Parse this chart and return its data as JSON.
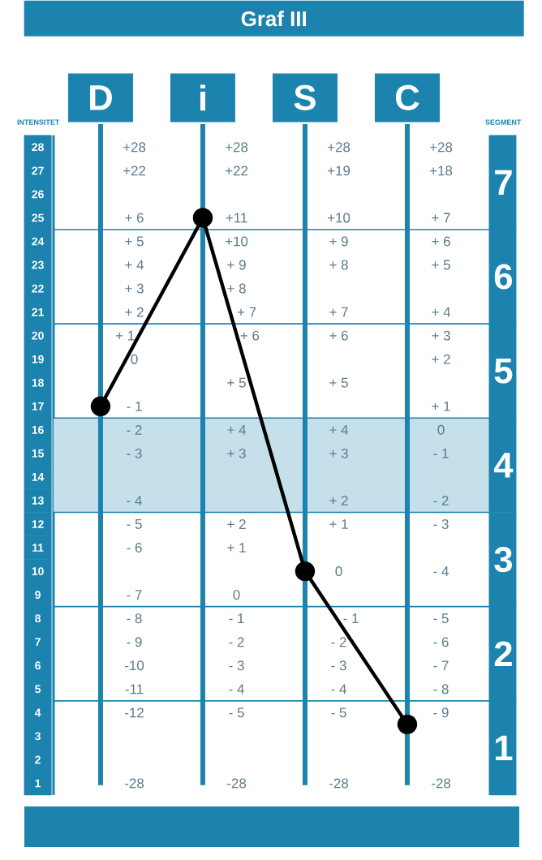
{
  "chart_data": {
    "type": "line",
    "title": "Graf III",
    "ylabel": "INTENSITET",
    "y2label": "SEGMENT",
    "categories": [
      "D",
      "i",
      "S",
      "C"
    ],
    "series": [
      {
        "color": "#000000",
        "values": [
          17,
          25,
          10,
          3.5
        ]
      }
    ],
    "ylim": [
      0.5,
      28.5
    ],
    "yticks": [
      1,
      2,
      3,
      4,
      5,
      6,
      7,
      8,
      9,
      10,
      11,
      12,
      13,
      14,
      15,
      16,
      17,
      18,
      19,
      20,
      21,
      22,
      23,
      24,
      25,
      26,
      27,
      28
    ],
    "y2lim": [
      0.5,
      7.5
    ],
    "y2ticks": [
      1,
      2,
      3,
      4,
      5,
      6,
      7
    ],
    "grid": "x",
    "marker": "circle",
    "line_style": "solid",
    "bands": [
      {
        "axis": "y",
        "from": 12.5,
        "to": 16.5,
        "color": "#c5dfeb"
      }
    ],
    "ref_lines": [
      {
        "axis": "y",
        "value": 24.5,
        "color": "#1b83ae"
      },
      {
        "axis": "y",
        "value": 20.5,
        "color": "#1b83ae"
      },
      {
        "axis": "y",
        "value": 16.5,
        "color": "#1b83ae"
      },
      {
        "axis": "y",
        "value": 12.5,
        "color": "#1b83ae"
      },
      {
        "axis": "y",
        "value": 8.5,
        "color": "#1b83ae"
      },
      {
        "axis": "y",
        "value": 4.5,
        "color": "#1b83ae"
      }
    ],
    "annotations": [
      "+28",
      "+22",
      "+ 6",
      "+ 5",
      "+ 4",
      "+ 3",
      "+ 2",
      "+ 1",
      "0",
      "- 1",
      "- 2",
      "- 3",
      "- 4",
      "- 5",
      "- 6",
      "- 7",
      "- 8",
      "- 9",
      "-10",
      "-11",
      "-12",
      "-28",
      "+28",
      "+22",
      "+11",
      "+10",
      "+ 9",
      "+ 8",
      "+ 7",
      "+ 6",
      "+ 5",
      "+ 4",
      "+ 3",
      "+ 2",
      "+ 1",
      "0",
      "- 1",
      "- 2",
      "- 3",
      "- 4",
      "- 5",
      "-28",
      "+28",
      "+19",
      "+10",
      "+ 9",
      "+ 8",
      "+ 7",
      "+ 6",
      "+ 5",
      "+ 4",
      "+ 3",
      "+ 2",
      "+ 1",
      "0",
      "- 1",
      "- 2",
      "- 3",
      "- 4",
      "- 5",
      "-28",
      "+28",
      "+18",
      "+ 7",
      "+ 6",
      "+ 5",
      "+ 4",
      "+ 3",
      "+ 2",
      "+ 1",
      "0",
      "- 1",
      "- 2",
      "- 3",
      "- 4",
      "- 5",
      "- 6",
      "- 7",
      "- 8",
      "- 9",
      "-28"
    ]
  }
}
